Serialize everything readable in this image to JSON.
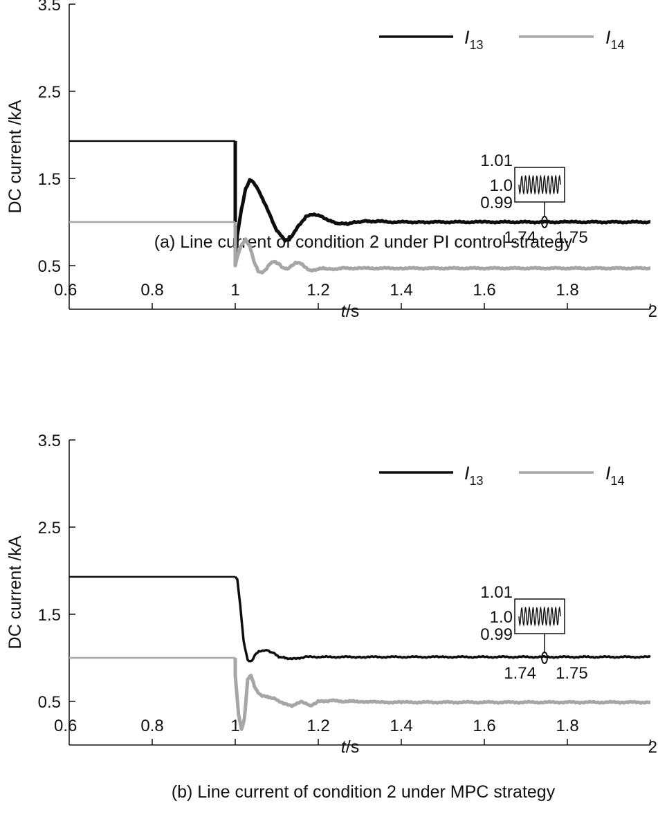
{
  "colors": {
    "axis": "#111111",
    "i13": "#0d0d0d",
    "i14": "#a6a6a6"
  },
  "chart_data": [
    {
      "type": "line",
      "title": "",
      "caption": "(a)  Line current of condition 2 under PI control strategy",
      "xlabel_italic": "t",
      "xlabel_unit": "/s",
      "ylabel": "DC current /kA",
      "xlim": [
        0.6,
        2.0
      ],
      "ylim": [
        0.0,
        3.5
      ],
      "xticks": [
        0.6,
        0.8,
        1.0,
        1.2,
        1.4,
        1.6,
        1.8,
        2.0
      ],
      "xtick_labels": [
        "0.6",
        "0.8",
        "1",
        "1.2",
        "1.4",
        "1.6",
        "1.8",
        "2"
      ],
      "yticks": [
        0.5,
        1.5,
        2.5,
        3.5
      ],
      "ytick_labels": [
        "0.5",
        "1.5",
        "2.5",
        "3.5"
      ],
      "legend": [
        {
          "letter": "I",
          "sub": "13",
          "color": "#0d0d0d"
        },
        {
          "letter": "I",
          "sub": "14",
          "color": "#a6a6a6"
        }
      ],
      "inset": {
        "labels": [
          "1.01",
          "1.0",
          "0.99"
        ],
        "x_labels": [
          "1.74",
          "1.75"
        ],
        "marker_x": 1.745,
        "marker_y": 1.0
      },
      "series": [
        {
          "name": "I13",
          "color": "#0d0d0d",
          "width": [
            2.5,
            5
          ],
          "x": [
            0.6,
            1.0,
            1.0,
            1.005,
            1.015,
            1.025,
            1.035,
            1.045,
            1.06,
            1.08,
            1.1,
            1.12,
            1.13,
            1.15,
            1.17,
            1.19,
            1.21,
            1.23,
            1.25,
            1.27,
            1.29,
            1.31,
            1.34,
            1.38,
            1.45,
            1.6,
            1.8,
            2.0
          ],
          "y": [
            1.93,
            1.93,
            0.62,
            0.85,
            1.15,
            1.38,
            1.48,
            1.45,
            1.33,
            1.12,
            0.9,
            0.79,
            0.8,
            0.94,
            1.06,
            1.09,
            1.06,
            1.01,
            0.98,
            0.98,
            1.0,
            1.01,
            1.01,
            1.0,
            1.0,
            1.0,
            1.0,
            1.0
          ]
        },
        {
          "name": "I14",
          "color": "#a6a6a6",
          "width": [
            2.5,
            5
          ],
          "x": [
            0.6,
            1.0,
            1.0,
            1.005,
            1.015,
            1.025,
            1.035,
            1.045,
            1.055,
            1.065,
            1.075,
            1.085,
            1.095,
            1.105,
            1.115,
            1.125,
            1.135,
            1.145,
            1.155,
            1.165,
            1.175,
            1.185,
            1.2,
            1.215,
            1.23,
            1.26,
            1.3,
            1.4,
            2.0
          ],
          "y": [
            1.0,
            1.0,
            0.5,
            0.6,
            0.74,
            0.8,
            0.72,
            0.55,
            0.44,
            0.42,
            0.46,
            0.53,
            0.55,
            0.52,
            0.47,
            0.46,
            0.5,
            0.53,
            0.53,
            0.5,
            0.46,
            0.44,
            0.46,
            0.47,
            0.46,
            0.47,
            0.47,
            0.47,
            0.47
          ]
        }
      ]
    },
    {
      "type": "line",
      "title": "",
      "caption": "(b)  Line current of condition 2 under MPC strategy",
      "xlabel_italic": "t",
      "xlabel_unit": "/s",
      "ylabel": "DC current /kA",
      "xlim": [
        0.6,
        2.0
      ],
      "ylim": [
        0.0,
        3.5
      ],
      "xticks": [
        0.6,
        0.8,
        1.0,
        1.2,
        1.4,
        1.6,
        1.8,
        2.0
      ],
      "xtick_labels": [
        "0.6",
        "0.8",
        "1",
        "1.2",
        "1.4",
        "1.6",
        "1.8",
        "2"
      ],
      "yticks": [
        0.5,
        1.5,
        2.5,
        3.5
      ],
      "ytick_labels": [
        "0.5",
        "1.5",
        "2.5",
        "3.5"
      ],
      "legend": [
        {
          "letter": "I",
          "sub": "13",
          "color": "#0d0d0d"
        },
        {
          "letter": "I",
          "sub": "14",
          "color": "#a6a6a6"
        }
      ],
      "inset": {
        "labels": [
          "1.01",
          "1.0",
          "0.99"
        ],
        "x_labels": [
          "1.74",
          "1.75"
        ],
        "marker_x": 1.745,
        "marker_y": 1.0
      },
      "series": [
        {
          "name": "I13",
          "color": "#0d0d0d",
          "width": [
            2.5,
            3.5
          ],
          "x": [
            0.6,
            1.0,
            1.005,
            1.012,
            1.02,
            1.03,
            1.04,
            1.05,
            1.06,
            1.075,
            1.09,
            1.105,
            1.12,
            1.14,
            1.17,
            1.2,
            1.3,
            1.5,
            2.0
          ],
          "y": [
            1.93,
            1.93,
            1.9,
            1.6,
            1.2,
            0.97,
            0.96,
            1.05,
            1.08,
            1.09,
            1.06,
            1.01,
            1.0,
            0.99,
            1.01,
            1.01,
            1.01,
            1.01,
            1.01
          ],
          "noise_from": 1.0
        },
        {
          "name": "I14",
          "color": "#a6a6a6",
          "width": [
            2.5,
            5
          ],
          "x": [
            0.6,
            1.0,
            1.0,
            1.008,
            1.015,
            1.022,
            1.03,
            1.038,
            1.046,
            1.055,
            1.065,
            1.08,
            1.1,
            1.12,
            1.14,
            1.16,
            1.18,
            1.2,
            1.23,
            1.26,
            1.3,
            1.35,
            1.4,
            2.0
          ],
          "y": [
            1.0,
            1.0,
            0.8,
            0.35,
            0.18,
            0.3,
            0.75,
            0.8,
            0.68,
            0.6,
            0.56,
            0.55,
            0.52,
            0.47,
            0.45,
            0.5,
            0.45,
            0.5,
            0.51,
            0.5,
            0.5,
            0.49,
            0.49,
            0.49
          ]
        }
      ]
    }
  ]
}
